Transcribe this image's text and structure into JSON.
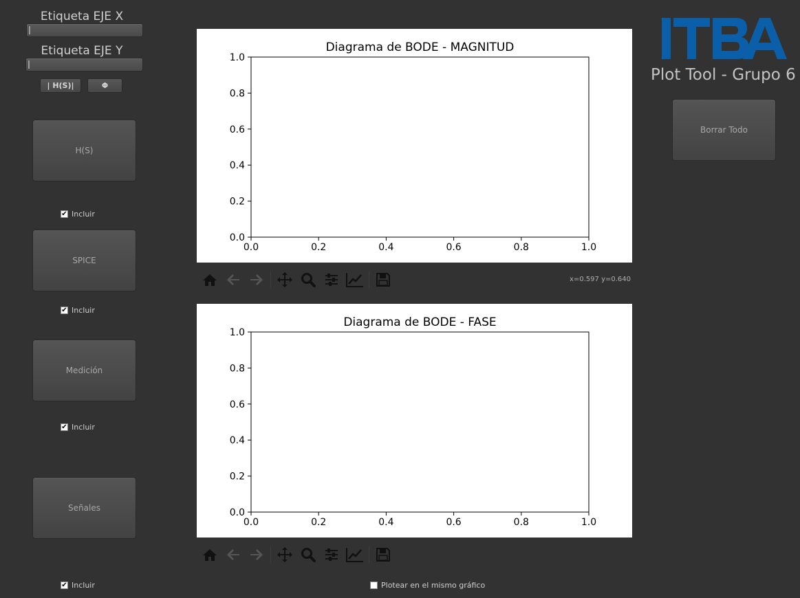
{
  "left_panel": {
    "x_label_title": "Etiqueta EJE X",
    "y_label_title": "Etiqueta EJE Y",
    "x_label_value": "",
    "y_label_value": "",
    "mag_button": "| H(S)|",
    "phase_button": "Φ",
    "sources": [
      {
        "button": "H(S)",
        "checkbox": "Incluir",
        "checked": true
      },
      {
        "button": "SPICE",
        "checkbox": "Incluir",
        "checked": true
      },
      {
        "button": "Medición",
        "checkbox": "Incluir",
        "checked": true
      },
      {
        "button": "Señales",
        "checkbox": "Incluir",
        "checked": true
      }
    ]
  },
  "plots": [
    {
      "chart_data": {
        "type": "line",
        "title": "Diagrama de BODE - MAGNITUD",
        "xlabel": "",
        "ylabel": "",
        "xlim": [
          0,
          1
        ],
        "ylim": [
          0,
          1
        ],
        "xticks": [
          "0.0",
          "0.2",
          "0.4",
          "0.6",
          "0.8",
          "1.0"
        ],
        "yticks": [
          "0.0",
          "0.2",
          "0.4",
          "0.6",
          "0.8",
          "1.0"
        ],
        "series": []
      },
      "coords": "x=0.597 y=0.640"
    },
    {
      "chart_data": {
        "type": "line",
        "title": "Diagrama de BODE - FASE",
        "xlabel": "",
        "ylabel": "",
        "xlim": [
          0,
          1
        ],
        "ylim": [
          0,
          1
        ],
        "xticks": [
          "0.0",
          "0.2",
          "0.4",
          "0.6",
          "0.8",
          "1.0"
        ],
        "yticks": [
          "0.0",
          "0.2",
          "0.4",
          "0.6",
          "0.8",
          "1.0"
        ],
        "series": []
      },
      "coords": ""
    }
  ],
  "same_plot_checkbox": {
    "label": "Plotear en el mismo gráfico",
    "checked": false
  },
  "right_panel": {
    "logo_text": "ITBA",
    "app_title": "Plot Tool - Grupo 6",
    "clear_button": "Borrar Todo"
  },
  "colors": {
    "background": "#323232",
    "logo_blue": "#0b5ea8",
    "plot_bg": "#ffffff"
  },
  "toolbar_icons": [
    "home-icon",
    "back-arrow-icon",
    "forward-arrow-icon",
    "pan-icon",
    "zoom-icon",
    "configure-subplots-icon",
    "edit-axis-icon",
    "save-icon"
  ]
}
